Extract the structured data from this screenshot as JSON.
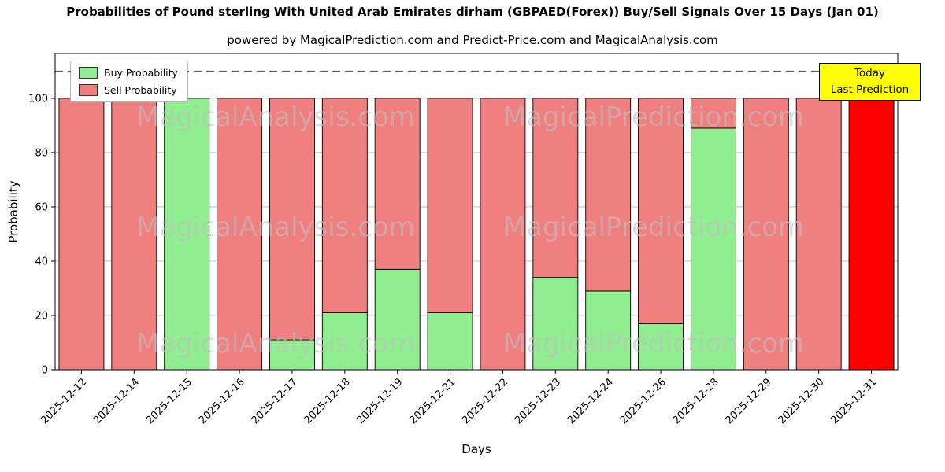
{
  "title": "Probabilities of Pound sterling With United Arab Emirates dirham (GBPAED(Forex)) Buy/Sell Signals Over 15 Days (Jan 01)",
  "subtitle": "powered by MagicalPrediction.com and Predict-Price.com and MagicalAnalysis.com",
  "legend": {
    "buy_label": "Buy Probability",
    "sell_label": "Sell Probability"
  },
  "today_box": {
    "line1": "Today",
    "line2": "Last Prediction"
  },
  "watermarks": [
    "MagicalAnalysis.com",
    "MagicalPrediction.com"
  ],
  "colors": {
    "buy": "#90EE90",
    "sell": "#F08080",
    "today_bar": "#FF0000",
    "today_box_bg": "#FFFF00",
    "grid": "#b0b0b0",
    "dashed_line": "#5a5a5a",
    "watermark": "#c0c0c0",
    "axis": "#000000"
  },
  "chart_data": {
    "type": "bar",
    "stacked": true,
    "title": "Probabilities of Pound sterling With United Arab Emirates dirham (GBPAED(Forex)) Buy/Sell Signals Over 15 Days (Jan 01)",
    "xlabel": "Days",
    "ylabel": "Probability",
    "ylim": [
      0,
      116.5
    ],
    "yticks": [
      0,
      20,
      40,
      60,
      80,
      100
    ],
    "grid": true,
    "legend_position": "upper-left",
    "dashed_line_y": 110,
    "categories": [
      "2025-12-12",
      "2025-12-14",
      "2025-12-15",
      "2025-12-16",
      "2025-12-17",
      "2025-12-18",
      "2025-12-19",
      "2025-12-21",
      "2025-12-22",
      "2025-12-23",
      "2025-12-24",
      "2025-12-26",
      "2025-12-28",
      "2025-12-29",
      "2025-12-30",
      "2025-12-31"
    ],
    "series": [
      {
        "name": "Buy Probability",
        "color": "#90EE90",
        "values": [
          0,
          0,
          100,
          0,
          11,
          21,
          37,
          21,
          0,
          34,
          29,
          17,
          89,
          0,
          0,
          0
        ]
      },
      {
        "name": "Sell Probability",
        "color": "#F08080",
        "values": [
          100,
          100,
          0,
          100,
          89,
          79,
          63,
          79,
          100,
          66,
          71,
          83,
          11,
          100,
          100,
          0
        ]
      }
    ],
    "today_bar": {
      "index": 15,
      "category": "2025-12-31",
      "value": 110,
      "color": "#FF0000"
    }
  }
}
